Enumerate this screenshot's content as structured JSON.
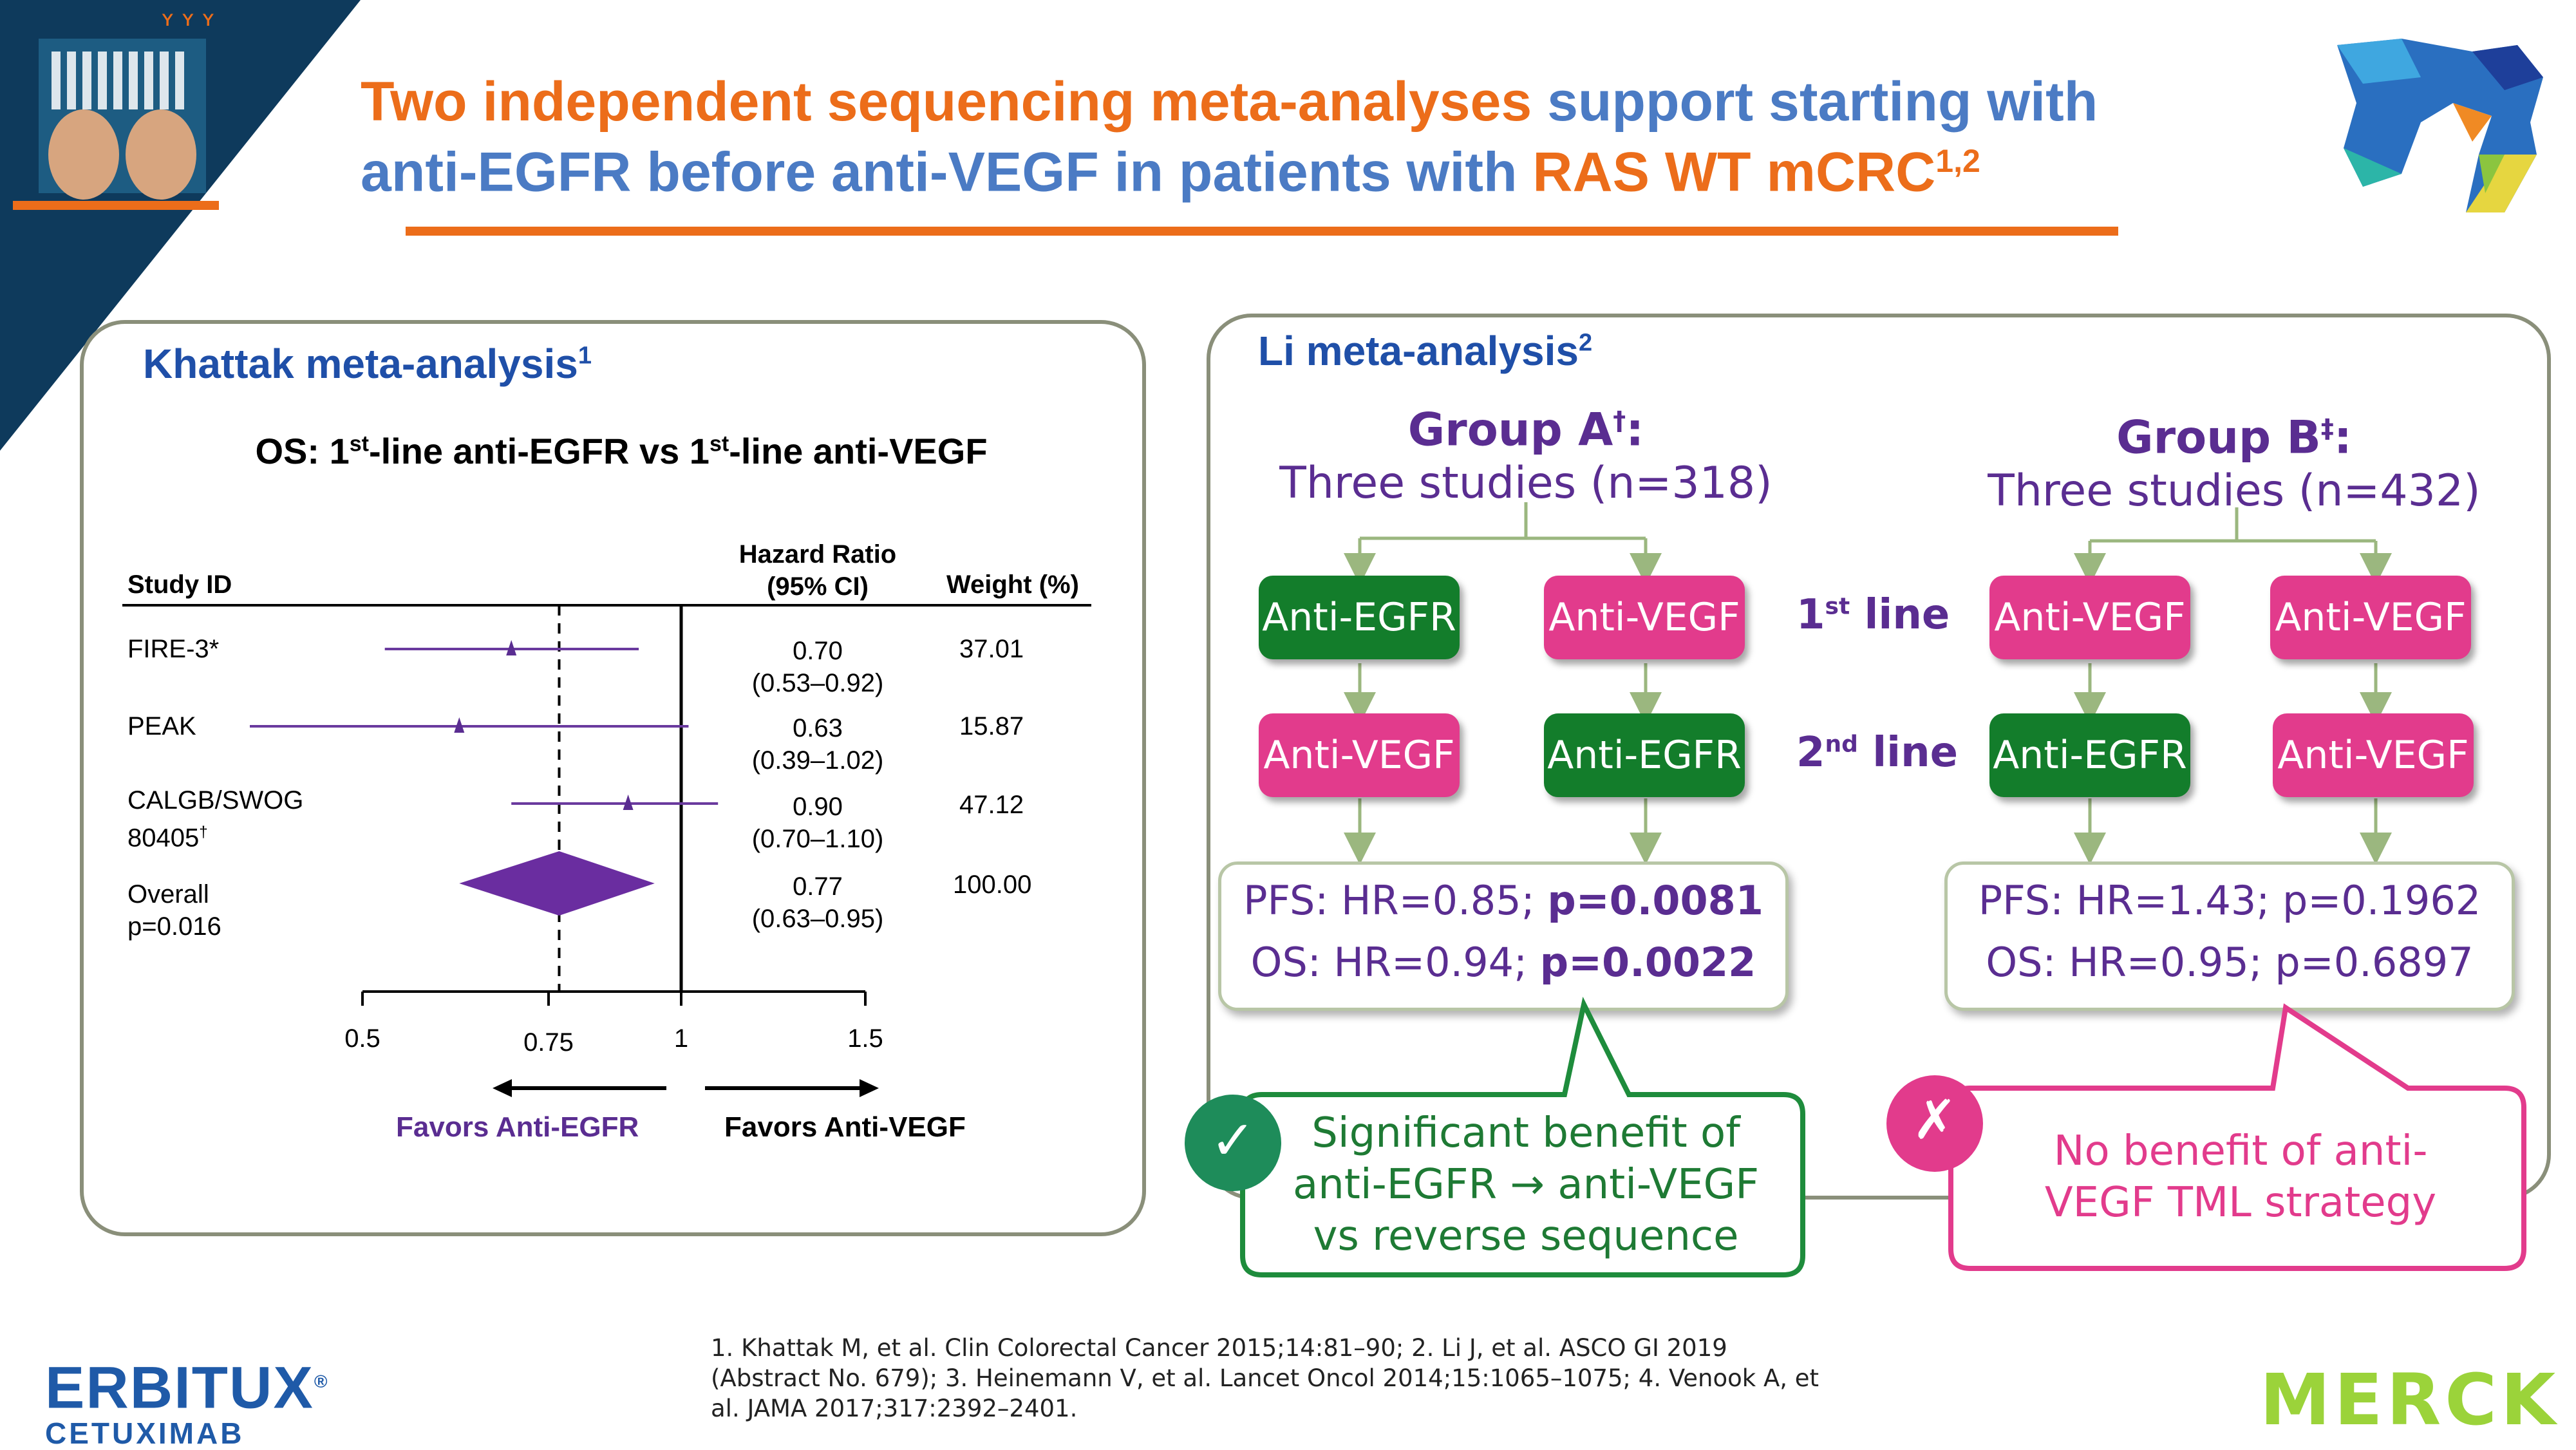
{
  "header": {
    "title_line1_part1": "Two independent sequencing meta-analyses",
    "title_line1_part2": "support starting with",
    "title_line2_part1": "anti-EGFR before anti-VEGF in patients with",
    "title_line2_part2": "RAS WT mCRC",
    "title_line2_sup": "1,2"
  },
  "khattak": {
    "title": "Khattak meta-analysis",
    "title_sup": "1",
    "chart_title_a": "OS: 1",
    "chart_title_sup1": "st",
    "chart_title_b": "-line anti-EGFR vs 1",
    "chart_title_sup2": "st",
    "chart_title_c": "-line anti-VEGF",
    "col_study": "Study ID",
    "col_hr_line1": "Hazard Ratio",
    "col_hr_line2": "(95% CI)",
    "col_weight": "Weight (%)",
    "rows": [
      {
        "study": "FIRE-3*",
        "study2": "",
        "hr": "0.70",
        "ci": "(0.53–0.92)",
        "weight": "37.01"
      },
      {
        "study": "PEAK",
        "study2": "",
        "hr": "0.63",
        "ci": "(0.39–1.02)",
        "weight": "15.87"
      },
      {
        "study": "CALGB/SWOG",
        "study2": "80405",
        "study2_sup": "†",
        "hr": "0.90",
        "ci": "(0.70–1.10)",
        "weight": "47.12"
      },
      {
        "study": "Overall",
        "study2": "p=0.016",
        "hr": "0.77",
        "ci": "(0.63–0.95)",
        "weight": "100.00"
      }
    ],
    "axis_ticks": [
      "0.5",
      "0.75",
      "1",
      "1.5"
    ],
    "favors_left": "Favors Anti-EGFR",
    "favors_right": "Favors Anti-VEGF"
  },
  "chart_data": {
    "type": "forest",
    "title": "OS: 1st-line anti-EGFR vs 1st-line anti-VEGF",
    "xlabel": "Hazard Ratio (95% CI)",
    "x_ticks": [
      0.5,
      0.75,
      1,
      1.5
    ],
    "xlim": [
      0.5,
      1.5
    ],
    "reference_line": 1,
    "overall_line": 0.77,
    "series": [
      {
        "name": "FIRE-3*",
        "hr": 0.7,
        "lower": 0.53,
        "upper": 0.92,
        "weight": 37.01
      },
      {
        "name": "PEAK",
        "hr": 0.63,
        "lower": 0.39,
        "upper": 1.02,
        "weight": 15.87
      },
      {
        "name": "CALGB/SWOG 80405†",
        "hr": 0.9,
        "lower": 0.7,
        "upper": 1.1,
        "weight": 47.12
      },
      {
        "name": "Overall",
        "hr": 0.77,
        "lower": 0.63,
        "upper": 0.95,
        "weight": 100.0
      }
    ]
  },
  "li": {
    "title": "Li meta-analysis",
    "title_sup": "2",
    "groupA_title": "Group A",
    "groupA_sup": "†",
    "groupA_colon": ":",
    "groupA_sub": "Three studies (n=318)",
    "groupB_title": "Group B",
    "groupB_sup": "‡",
    "groupB_colon": ":",
    "groupB_sub": "Three studies (n=432)",
    "line1_label": "1",
    "line1_sup": "st",
    "line1_word": " line",
    "line2_label": "2",
    "line2_sup": "nd",
    "line2_word": " line",
    "a_left_1": "Anti-EGFR",
    "a_right_1": "Anti-VEGF",
    "a_left_2": "Anti-VEGF",
    "a_right_2": "Anti-EGFR",
    "b_left_1": "Anti-VEGF",
    "b_right_1": "Anti-VEGF",
    "b_left_2": "Anti-EGFR",
    "b_right_2": "Anti-VEGF",
    "a_pfs_prefix": "PFS: HR=0.85; ",
    "a_pfs_p": "p=0.0081",
    "a_os_prefix": "OS: HR=0.94; ",
    "a_os_p": "p=0.0022",
    "b_pfs": "PFS: HR=1.43; p=0.1962",
    "b_os": "OS: HR=0.95; p=0.6897",
    "callout_a": [
      "Significant benefit of",
      "anti-EGFR → anti-VEGF",
      "vs reverse sequence"
    ],
    "callout_b": [
      "No benefit of anti-",
      "VEGF TML strategy"
    ],
    "check_glyph": "✓",
    "cross_glyph": "✗"
  },
  "footer": {
    "refs_line1": "1. Khattak M, et al. Clin Colorectal Cancer 2015;14:81–90; 2. Li J, et al. ASCO GI 2019",
    "refs_line2": "(Abstract No. 679); 3. Heinemann V, et al. Lancet Oncol 2014;15:1065–1075; 4. Venook A, et",
    "refs_line3": "al. JAMA 2017;317:2392–2401.",
    "brand_name": "ERBITUX",
    "brand_reg": "®",
    "brand_sub": "CETUXIMAB",
    "company": "MERCK"
  },
  "colors": {
    "orange": "#ec6d1a",
    "blue": "#4b7bc4",
    "purple": "#5a2d91",
    "green": "#137d2b",
    "pink": "#e23b8c",
    "navy": "#0e3a5c"
  }
}
